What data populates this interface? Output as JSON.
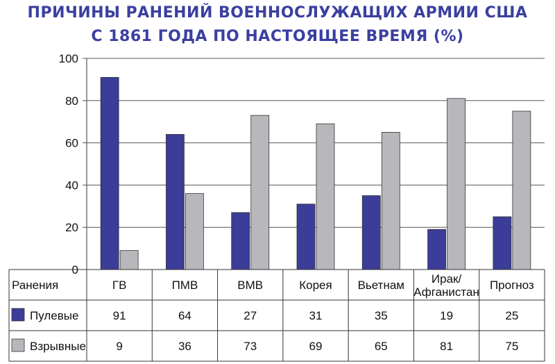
{
  "title_line1": "ПРИЧИНЫ РАНЕНИЙ ВОЕННОСЛУЖАЩИХ АРМИИ США",
  "title_line2": "С 1861 ГОДА ПО НАСТОЯЩЕЕ ВРЕМЯ (%)",
  "colors": {
    "series1": "#3b3d98",
    "series2": "#b8b8bc",
    "grid": "#555555",
    "title": "#3a3fa0"
  },
  "chart_data": {
    "type": "bar",
    "title": "ПРИЧИНЫ РАНЕНИЙ ВОЕННОСЛУЖАЩИХ АРМИИ США С 1861 ГОДА ПО НАСТОЯЩЕЕ ВРЕМЯ (%)",
    "ylim": [
      0,
      100
    ],
    "yticks": [
      0,
      20,
      40,
      60,
      80,
      100
    ],
    "grid": true,
    "legend": "table-left",
    "table_header": "Ранения",
    "categories": [
      "ГВ",
      "ПМВ",
      "ВМВ",
      "Корея",
      "Вьетнам",
      "Ирак/ Афганистан",
      "Прогноз"
    ],
    "series": [
      {
        "name": "Пулевые",
        "values": [
          91,
          64,
          27,
          31,
          35,
          19,
          25
        ]
      },
      {
        "name": "Взрывные",
        "values": [
          9,
          36,
          73,
          69,
          65,
          81,
          75
        ]
      }
    ]
  }
}
